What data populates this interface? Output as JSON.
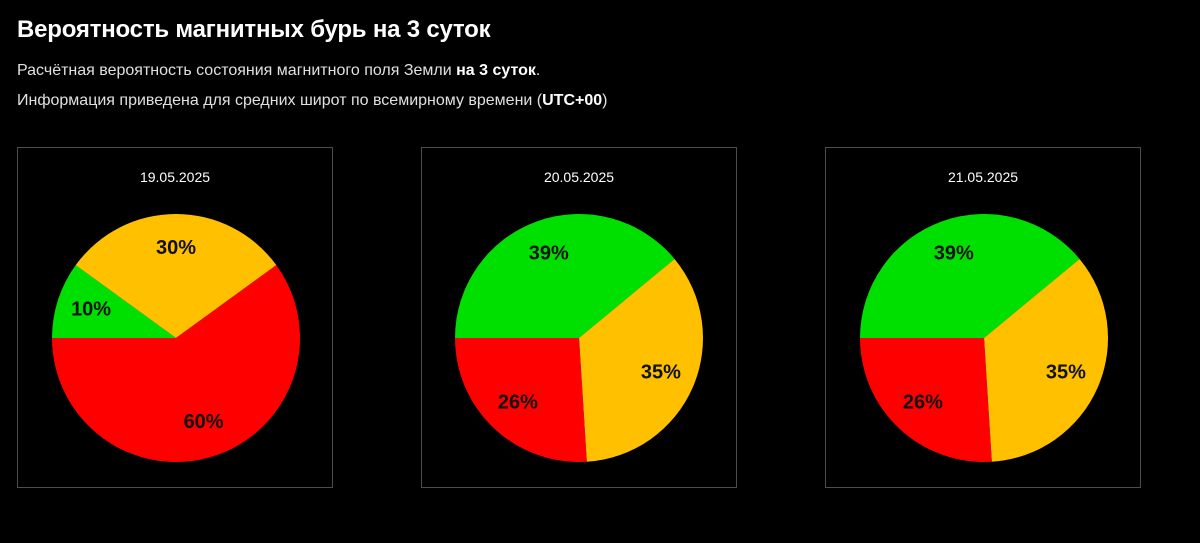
{
  "header": {
    "title": "Вероятность магнитных бурь на 3 суток",
    "line1_text": "Расчётная вероятность состояния магнитного поля Земли ",
    "line1_bold": "на 3 суток",
    "line1_end": ".",
    "line2_text": "Информация приведена для средних широт по всемирному времени (",
    "line2_bold": "UTC+00",
    "line2_end": ")"
  },
  "colors": {
    "green": "#00e000",
    "yellow": "#ffc000",
    "red": "#ff0000"
  },
  "chart_data": [
    {
      "type": "pie",
      "title": "19.05.2025",
      "slices": [
        {
          "value": 10,
          "label": "10%",
          "color": "#00e000"
        },
        {
          "value": 30,
          "label": "30%",
          "color": "#ffc000"
        },
        {
          "value": 60,
          "label": "60%",
          "color": "#ff0000"
        }
      ]
    },
    {
      "type": "pie",
      "title": "20.05.2025",
      "slices": [
        {
          "value": 39,
          "label": "39%",
          "color": "#00e000"
        },
        {
          "value": 35,
          "label": "35%",
          "color": "#ffc000"
        },
        {
          "value": 26,
          "label": "26%",
          "color": "#ff0000"
        }
      ]
    },
    {
      "type": "pie",
      "title": "21.05.2025",
      "slices": [
        {
          "value": 39,
          "label": "39%",
          "color": "#00e000"
        },
        {
          "value": 35,
          "label": "35%",
          "color": "#ffc000"
        },
        {
          "value": 26,
          "label": "26%",
          "color": "#ff0000"
        }
      ]
    }
  ]
}
